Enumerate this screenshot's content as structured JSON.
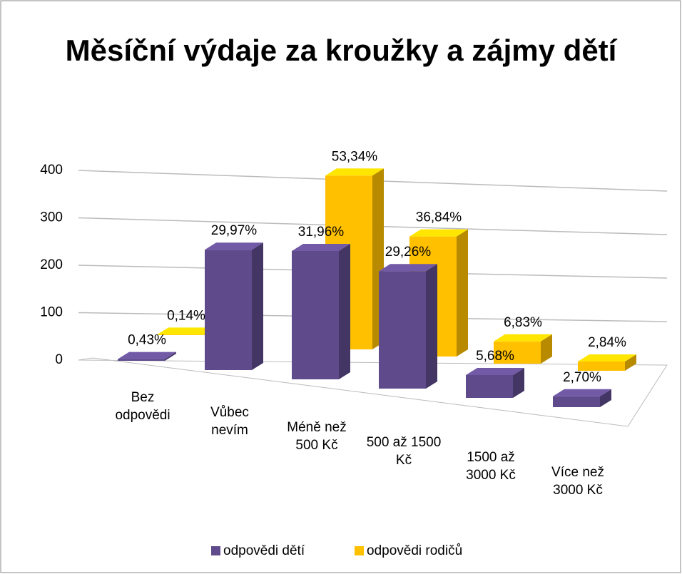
{
  "chart_data": {
    "type": "bar3d",
    "title": "Měsíční výdaje za kroužky a zájmy dětí",
    "categories": [
      "Bez odpovědi",
      "Vůbec nevím",
      "Méně než 500 Kč",
      "500 až 1500 Kč",
      "1500 až 3000 Kč",
      "Více než 3000 Kč"
    ],
    "series": [
      {
        "name": "odpovědi dětí",
        "color": "#5f4b8b",
        "values": [
          3,
          211,
          225,
          206,
          40,
          19
        ],
        "value_labels": [
          "0,43%",
          "29,97%",
          "31,96%",
          "29,26%",
          "5,68%",
          "2,70%"
        ]
      },
      {
        "name": "odpovědi rodičů",
        "color": "#ffc000",
        "values": [
          1,
          null,
          375,
          259,
          48,
          20
        ],
        "value_labels": [
          "0,14%",
          null,
          "53,34%",
          "36,84%",
          "6,83%",
          "2,84%"
        ]
      }
    ],
    "ylim": [
      0,
      400
    ],
    "yticks": [
      0,
      100,
      200,
      300,
      400
    ],
    "grid": true,
    "legend": "bottom"
  }
}
